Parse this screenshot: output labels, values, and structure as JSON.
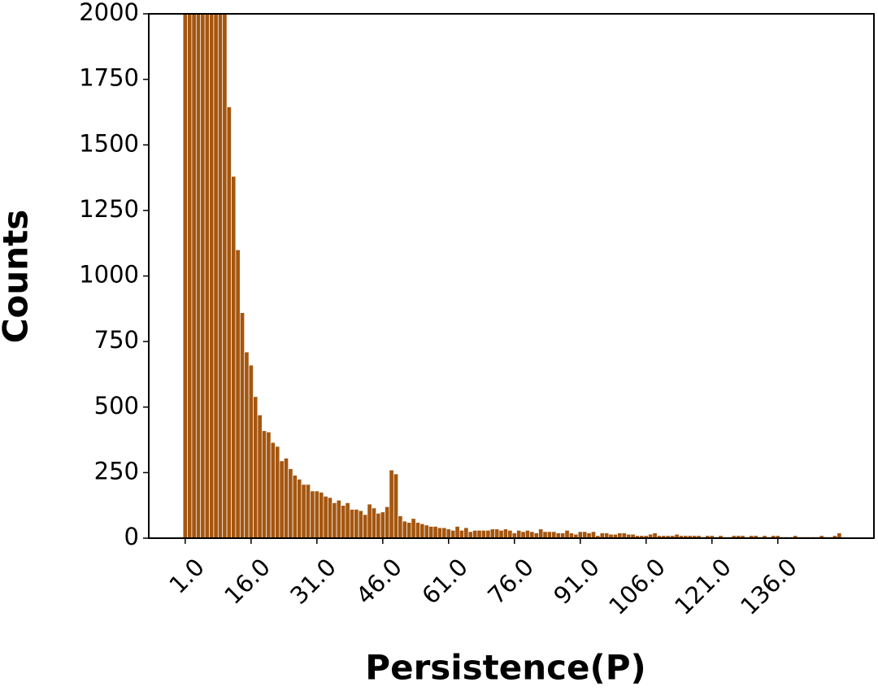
{
  "chart_data": {
    "type": "bar",
    "x_label": "Persistence(P)",
    "y_label": "Counts",
    "x": [
      1,
      2,
      3,
      4,
      5,
      6,
      7,
      8,
      9,
      10,
      11,
      12,
      13,
      14,
      15,
      16,
      17,
      18,
      19,
      20,
      21,
      22,
      23,
      24,
      25,
      26,
      27,
      28,
      29,
      30,
      31,
      32,
      33,
      34,
      35,
      36,
      37,
      38,
      39,
      40,
      41,
      42,
      43,
      44,
      45,
      46,
      47,
      48,
      49,
      50,
      51,
      52,
      53,
      54,
      55,
      56,
      57,
      58,
      59,
      60,
      61,
      62,
      63,
      64,
      65,
      66,
      67,
      68,
      69,
      70,
      71,
      72,
      73,
      74,
      75,
      76,
      77,
      78,
      79,
      80,
      81,
      82,
      83,
      84,
      85,
      86,
      87,
      88,
      89,
      90,
      91,
      92,
      93,
      94,
      95,
      96,
      97,
      98,
      99,
      100,
      101,
      102,
      103,
      104,
      105,
      106,
      107,
      108,
      109,
      110,
      111,
      112,
      113,
      114,
      115,
      116,
      117,
      118,
      119,
      120,
      121,
      122,
      123,
      124,
      125,
      126,
      127,
      128,
      129,
      130,
      131,
      132,
      133,
      134,
      135,
      136,
      137,
      138,
      139,
      140,
      141,
      142,
      143,
      144,
      145,
      146,
      147,
      148,
      149,
      150
    ],
    "values": [
      2000,
      2000,
      2000,
      2000,
      2000,
      2000,
      2000,
      2000,
      2000,
      2000,
      1645,
      1380,
      1100,
      860,
      710,
      660,
      540,
      470,
      410,
      405,
      365,
      350,
      295,
      305,
      265,
      240,
      225,
      205,
      205,
      180,
      180,
      175,
      160,
      155,
      135,
      145,
      125,
      135,
      110,
      110,
      105,
      90,
      130,
      115,
      95,
      100,
      120,
      260,
      245,
      85,
      65,
      60,
      75,
      60,
      55,
      50,
      45,
      45,
      40,
      40,
      35,
      30,
      45,
      30,
      40,
      25,
      30,
      30,
      30,
      30,
      35,
      35,
      30,
      35,
      30,
      20,
      30,
      25,
      30,
      25,
      20,
      35,
      25,
      25,
      25,
      20,
      20,
      30,
      20,
      15,
      25,
      25,
      20,
      25,
      10,
      20,
      20,
      15,
      15,
      20,
      20,
      15,
      15,
      10,
      10,
      10,
      15,
      20,
      10,
      10,
      10,
      10,
      15,
      10,
      10,
      10,
      10,
      10,
      5,
      10,
      10,
      5,
      10,
      5,
      5,
      10,
      10,
      10,
      5,
      10,
      10,
      5,
      10,
      5,
      10,
      10,
      5,
      5,
      5,
      10,
      5,
      5,
      5,
      5,
      5,
      10,
      5,
      5,
      10,
      20
    ],
    "color": "#a5560f",
    "xlim": [
      -7.3,
      157.9
    ],
    "xticks": [
      {
        "value": 1,
        "label": "1.0"
      },
      {
        "value": 16,
        "label": "16.0"
      },
      {
        "value": 31,
        "label": "31.0"
      },
      {
        "value": 46,
        "label": "46.0"
      },
      {
        "value": 61,
        "label": "61.0"
      },
      {
        "value": 76,
        "label": "76.0"
      },
      {
        "value": 91,
        "label": "91.0"
      },
      {
        "value": 106,
        "label": "106.0"
      },
      {
        "value": 121,
        "label": "121.0"
      },
      {
        "value": 136,
        "label": "136.0"
      }
    ],
    "ylim": [
      0,
      2000
    ],
    "yticks": [
      0,
      250,
      500,
      750,
      1000,
      1250,
      1500,
      1750,
      2000
    ]
  }
}
